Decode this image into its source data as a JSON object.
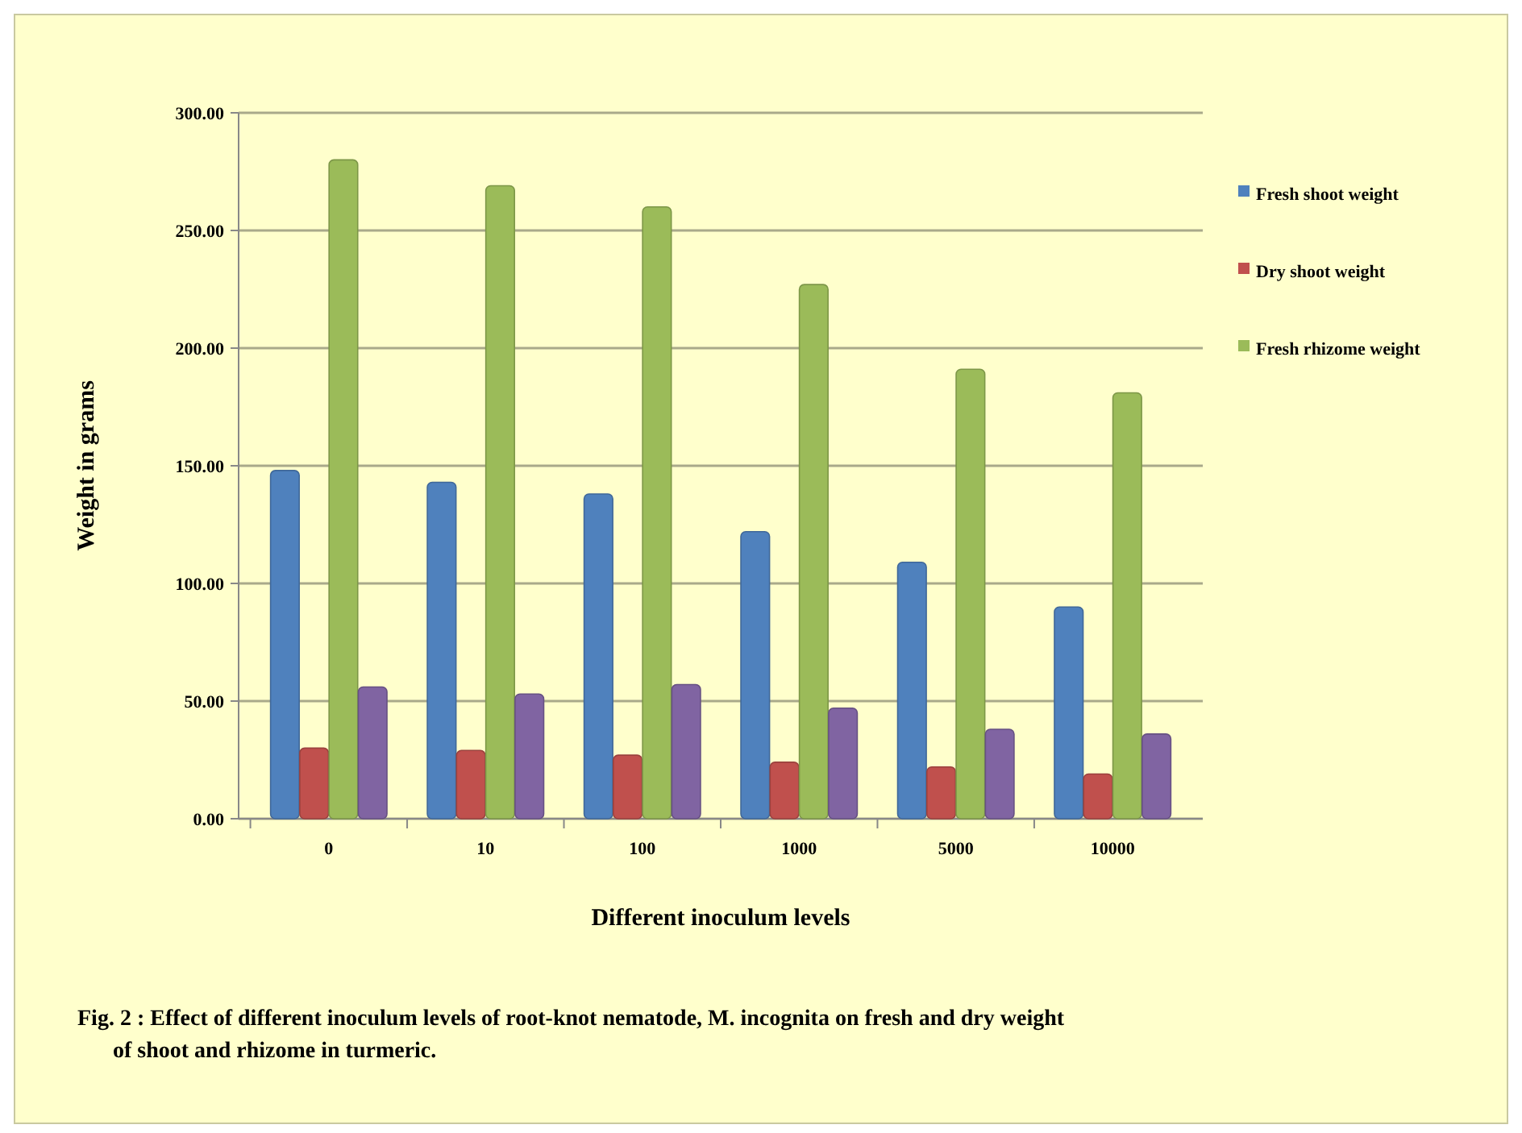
{
  "chart_data": {
    "type": "bar",
    "title": "Fig. 2 : Effect of different inoculum levels of root-knot nematode, M. incognita on fresh and dry weight of shoot and rhizome  in turmeric.",
    "xlabel": "Different inoculum levels",
    "ylabel": "Weight in grams",
    "categories": [
      "0",
      "10",
      "100",
      "1000",
      "5000",
      "10000"
    ],
    "series": [
      {
        "name": "Fresh shoot weight",
        "color": "#4f81bd",
        "values": [
          148,
          143,
          138,
          122,
          109,
          90
        ]
      },
      {
        "name": "Dry shoot weight",
        "color": "#c0504d",
        "values": [
          30,
          29,
          27,
          24,
          22,
          19
        ]
      },
      {
        "name": "Fresh rhizome weight",
        "color": "#9bbb59",
        "values": [
          280,
          269,
          260,
          227,
          191,
          181
        ]
      },
      {
        "color": "#8064a2",
        "values": [
          56,
          53,
          57,
          47,
          38,
          36
        ]
      }
    ],
    "ylim": [
      0,
      300
    ],
    "yticks": [
      {
        "value": 0,
        "label": "0.00"
      },
      {
        "value": 50,
        "label": "50.00"
      },
      {
        "value": 100,
        "label": "100.00"
      },
      {
        "value": 150,
        "label": "150.00"
      },
      {
        "value": 200,
        "label": "200.00"
      },
      {
        "value": 250,
        "label": "250.00"
      },
      {
        "value": 300,
        "label": "300.00"
      }
    ],
    "grid": "y",
    "legend": "right"
  }
}
